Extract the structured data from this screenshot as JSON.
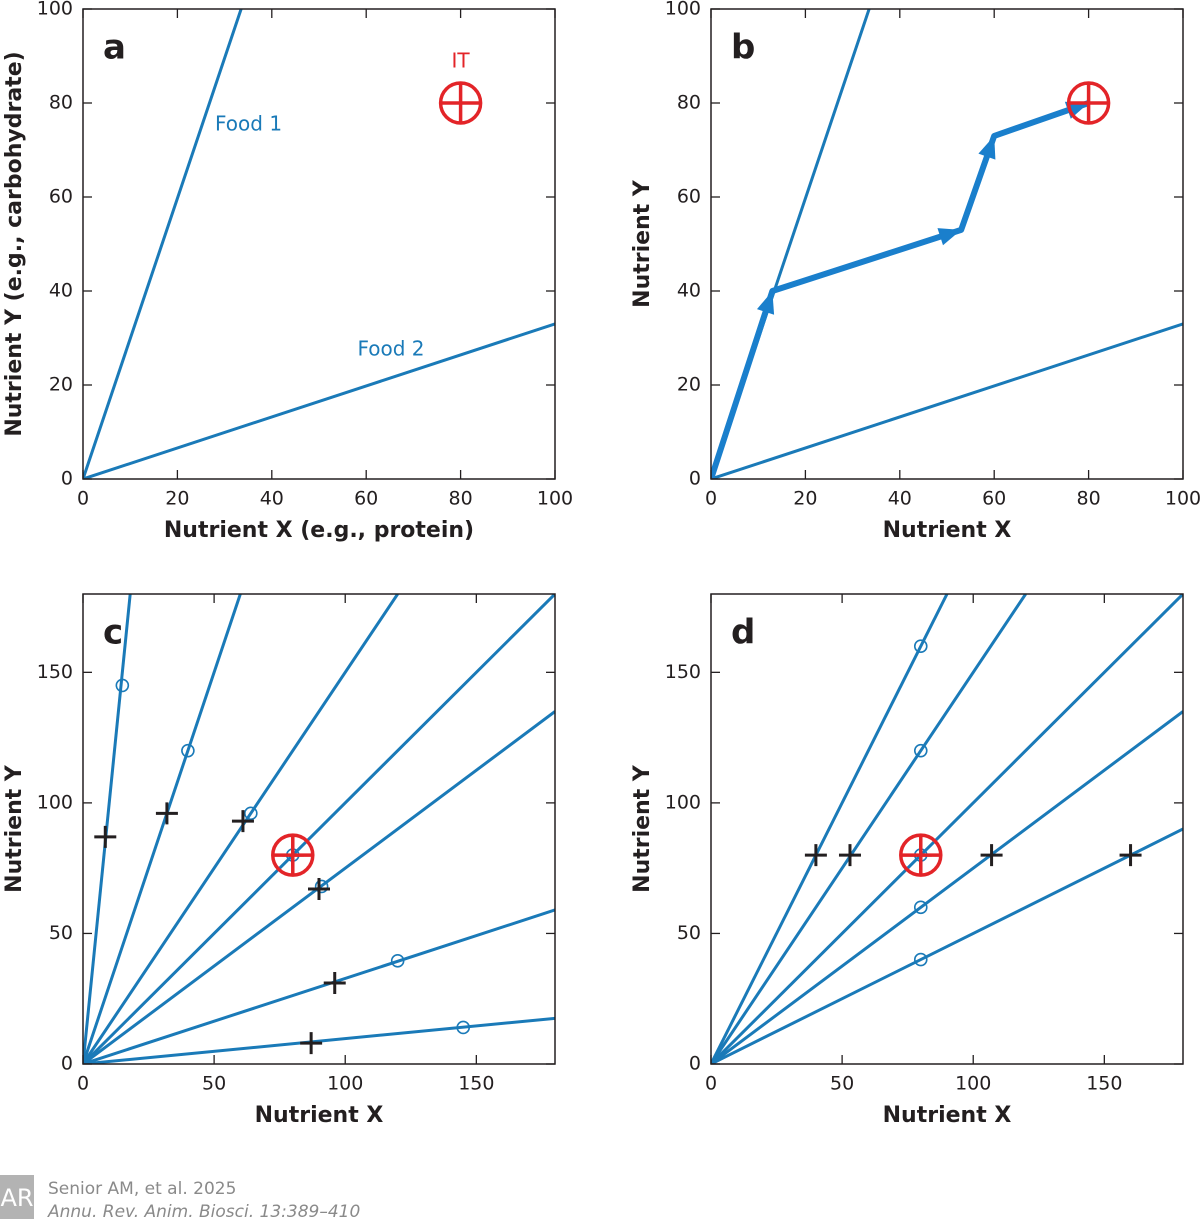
{
  "chart_data": [
    {
      "type": "line",
      "label": "a",
      "xlabel": "Nutrient X (e.g., protein)",
      "ylabel": "Nutrient Y (e.g., carbohydrate)",
      "xlim": [
        0,
        100
      ],
      "ylim": [
        0,
        100
      ],
      "xticks": [
        0,
        20,
        40,
        60,
        80,
        100
      ],
      "yticks": [
        0,
        20,
        40,
        60,
        80,
        100
      ],
      "series": [
        {
          "name": "Food 1",
          "mark": "line",
          "color": "#1a7ab8",
          "x": [
            0,
            33.5
          ],
          "values": [
            0,
            100
          ]
        },
        {
          "name": "Food 2",
          "mark": "line",
          "color": "#1a7ab8",
          "x": [
            0,
            100
          ],
          "values": [
            0,
            33
          ]
        },
        {
          "name": "IT",
          "mark": "target",
          "color": "#e32428",
          "x": [
            80
          ],
          "values": [
            80
          ]
        }
      ]
    },
    {
      "type": "line",
      "label": "b",
      "xlabel": "Nutrient X",
      "ylabel": "Nutrient Y",
      "xlim": [
        0,
        100
      ],
      "ylim": [
        0,
        100
      ],
      "xticks": [
        0,
        20,
        40,
        60,
        80,
        100
      ],
      "yticks": [
        0,
        20,
        40,
        60,
        80,
        100
      ],
      "series": [
        {
          "mark": "line",
          "color": "#1a7ab8",
          "x": [
            0,
            33.5
          ],
          "values": [
            0,
            100
          ]
        },
        {
          "mark": "line",
          "color": "#1a7ab8",
          "x": [
            0,
            100
          ],
          "values": [
            0,
            33
          ]
        },
        {
          "mark": "arrow",
          "color": "#1a7fcc",
          "x": [
            0,
            13,
            53,
            60,
            80
          ],
          "values": [
            0,
            40,
            53,
            73,
            80
          ]
        },
        {
          "mark": "target",
          "color": "#e32428",
          "x": [
            80
          ],
          "values": [
            80
          ]
        }
      ]
    },
    {
      "type": "line",
      "label": "c",
      "xlabel": "Nutrient X",
      "ylabel": "Nutrient Y",
      "xlim": [
        0,
        180
      ],
      "ylim": [
        0,
        180
      ],
      "xticks": [
        0,
        50,
        100,
        150
      ],
      "yticks": [
        0,
        50,
        100,
        150
      ],
      "series": [
        {
          "mark": "line",
          "color": "#1a7ab8",
          "x": [
            0,
            18
          ],
          "values": [
            0,
            180
          ]
        },
        {
          "mark": "line",
          "color": "#1a7ab8",
          "x": [
            0,
            60
          ],
          "values": [
            0,
            180
          ]
        },
        {
          "mark": "line",
          "color": "#1a7ab8",
          "x": [
            0,
            120
          ],
          "values": [
            0,
            180
          ]
        },
        {
          "mark": "line",
          "color": "#1a7ab8",
          "x": [
            0,
            180
          ],
          "values": [
            0,
            180
          ]
        },
        {
          "mark": "line",
          "color": "#1a7ab8",
          "x": [
            0,
            180
          ],
          "values": [
            0,
            135
          ]
        },
        {
          "mark": "line",
          "color": "#1a7ab8",
          "x": [
            0,
            180
          ],
          "values": [
            0,
            59
          ]
        },
        {
          "mark": "line",
          "color": "#1a7ab8",
          "x": [
            0,
            180
          ],
          "values": [
            0,
            17.5
          ]
        },
        {
          "mark": "circle",
          "color": "#1a7ab8",
          "x": [
            15,
            40,
            64,
            80,
            91,
            120,
            145
          ],
          "values": [
            145,
            120,
            96,
            80,
            68,
            39.5,
            14
          ]
        },
        {
          "mark": "plus",
          "color": "#231f20",
          "x": [
            8.5,
            32,
            61,
            80,
            90,
            96,
            87
          ],
          "values": [
            87,
            96,
            93,
            80,
            67,
            31,
            8
          ]
        },
        {
          "mark": "target",
          "color": "#e32428",
          "x": [
            80
          ],
          "values": [
            80
          ]
        }
      ]
    },
    {
      "type": "line",
      "label": "d",
      "xlabel": "Nutrient X",
      "ylabel": "Nutrient Y",
      "xlim": [
        0,
        180
      ],
      "ylim": [
        0,
        180
      ],
      "xticks": [
        0,
        50,
        100,
        150
      ],
      "yticks": [
        0,
        50,
        100,
        150
      ],
      "series": [
        {
          "mark": "line",
          "color": "#1a7ab8",
          "x": [
            0,
            90
          ],
          "values": [
            0,
            180
          ]
        },
        {
          "mark": "line",
          "color": "#1a7ab8",
          "x": [
            0,
            120
          ],
          "values": [
            0,
            180
          ]
        },
        {
          "mark": "line",
          "color": "#1a7ab8",
          "x": [
            0,
            180
          ],
          "values": [
            0,
            180
          ]
        },
        {
          "mark": "line",
          "color": "#1a7ab8",
          "x": [
            0,
            180
          ],
          "values": [
            0,
            135
          ]
        },
        {
          "mark": "line",
          "color": "#1a7ab8",
          "x": [
            0,
            180
          ],
          "values": [
            0,
            90
          ]
        },
        {
          "mark": "circle",
          "color": "#1a7ab8",
          "x": [
            80,
            80,
            80,
            80,
            80
          ],
          "values": [
            160,
            120,
            80,
            60,
            40
          ]
        },
        {
          "mark": "plus",
          "color": "#231f20",
          "x": [
            40,
            53,
            80,
            107,
            160
          ],
          "values": [
            80,
            80,
            80,
            80,
            80
          ]
        },
        {
          "mark": "target",
          "color": "#e32428",
          "x": [
            80
          ],
          "values": [
            80
          ]
        }
      ]
    }
  ],
  "logo": "AR",
  "footer": {
    "line1": "Senior AM, et al. 2025",
    "line2": "Annu. Rev. Anim. Biosci. 13:389–410"
  }
}
